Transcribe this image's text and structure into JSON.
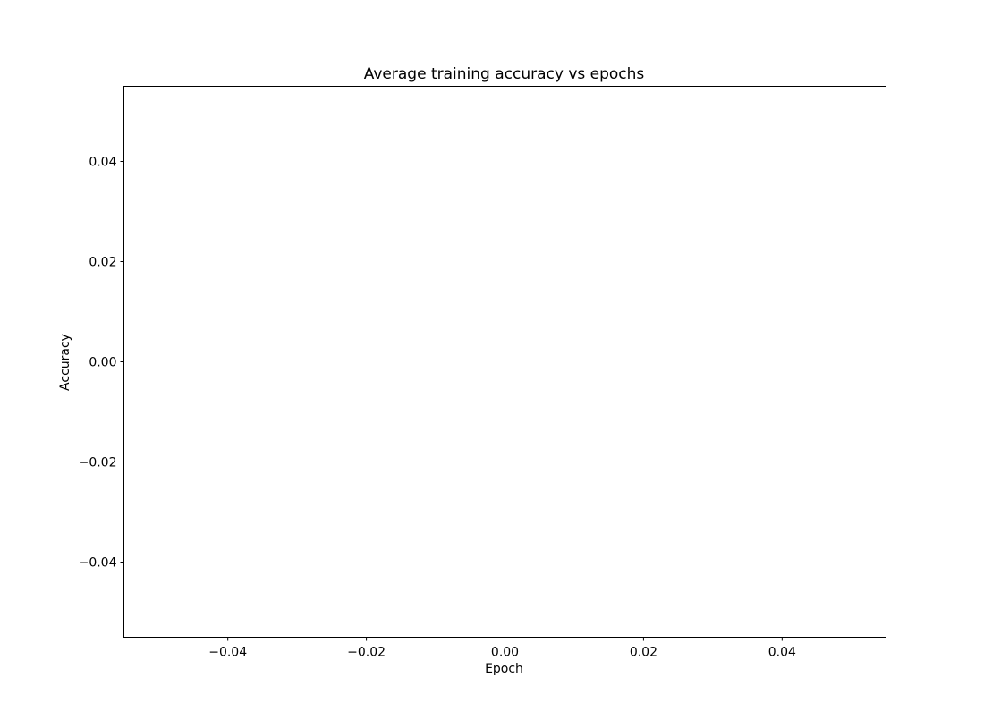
{
  "chart_data": {
    "type": "line",
    "title": "Average training accuracy vs epochs",
    "xlabel": "Epoch",
    "ylabel": "Accuracy",
    "xlim": [
      -0.055,
      0.055
    ],
    "ylim": [
      -0.055,
      0.055
    ],
    "x_ticks": [
      {
        "value": -0.04,
        "label": "−0.04"
      },
      {
        "value": -0.02,
        "label": "−0.02"
      },
      {
        "value": 0.0,
        "label": "0.00"
      },
      {
        "value": 0.02,
        "label": "0.02"
      },
      {
        "value": 0.04,
        "label": "0.04"
      }
    ],
    "y_ticks": [
      {
        "value": -0.04,
        "label": "−0.04"
      },
      {
        "value": -0.02,
        "label": "−0.02"
      },
      {
        "value": 0.0,
        "label": "0.00"
      },
      {
        "value": 0.02,
        "label": "0.02"
      },
      {
        "value": 0.04,
        "label": "0.04"
      }
    ],
    "series": [],
    "grid": false,
    "legend": "none"
  }
}
